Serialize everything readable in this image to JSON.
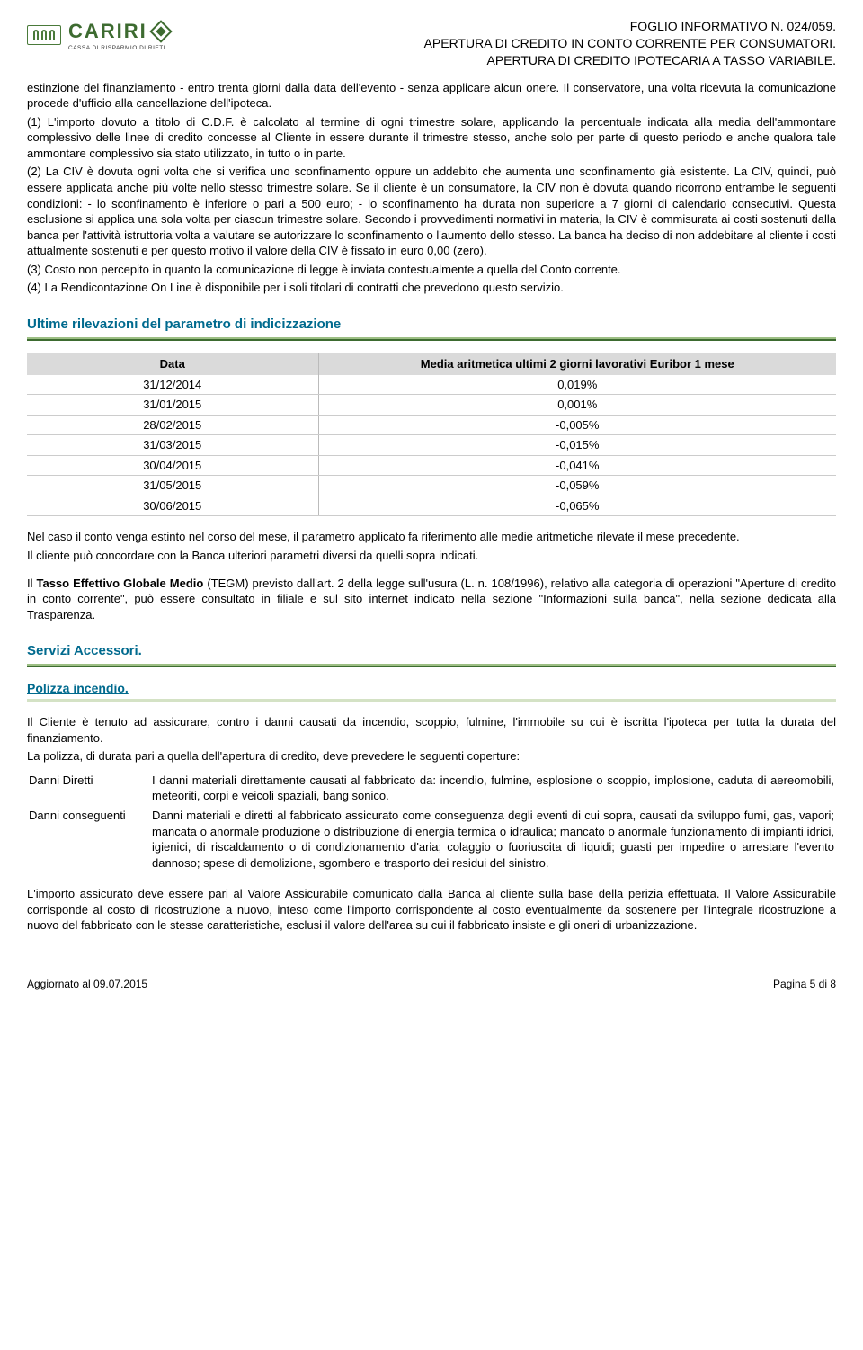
{
  "logo": {
    "name": "CARIRI",
    "sub": "CASSA DI RISPARMIO DI RIETI"
  },
  "header": {
    "line1": "FOGLIO INFORMATIVO N. 024/059.",
    "line2": "APERTURA DI CREDITO IN CONTO CORRENTE PER CONSUMATORI.",
    "line3": "APERTURA DI CREDITO IPOTECARIA A TASSO VARIABILE."
  },
  "p_intro": "estinzione del finanziamento - entro trenta giorni dalla data dell'evento - senza applicare alcun onere. Il conservatore, una volta ricevuta la comunicazione procede d'ufficio alla cancellazione dell'ipoteca.",
  "p_note1": "(1) L'importo dovuto a titolo di C.D.F. è calcolato al termine di ogni trimestre solare, applicando la percentuale indicata alla media dell'ammontare complessivo delle linee di credito concesse al Cliente in essere durante il trimestre stesso, anche solo per parte di questo periodo e anche qualora tale ammontare complessivo sia stato utilizzato, in tutto o in parte.",
  "p_note2": "(2) La CIV è dovuta ogni volta che si verifica uno sconfinamento oppure un addebito che aumenta uno sconfinamento già esistente. La CIV, quindi, può essere applicata anche più volte nello stesso trimestre solare. Se il cliente è un consumatore, la CIV non è dovuta quando ricorrono entrambe le seguenti condizioni: - lo sconfinamento è inferiore o pari a 500 euro; - lo sconfinamento ha durata non superiore a 7 giorni di calendario consecutivi. Questa esclusione si applica una sola volta per ciascun trimestre solare. Secondo i provvedimenti normativi in materia, la CIV è commisurata ai costi sostenuti dalla banca per l'attività istruttoria volta a valutare se autorizzare lo sconfinamento o l'aumento dello stesso. La banca ha deciso di non addebitare al cliente i costi attualmente sostenuti e per questo motivo il valore della CIV è fissato in euro 0,00 (zero).",
  "p_note3": "(3) Costo non percepito in quanto la comunicazione di legge è inviata contestualmente a quella del Conto corrente.",
  "p_note4": "(4) La Rendicontazione On Line è disponibile per i soli titolari di contratti che prevedono questo servizio.",
  "sec_rates_title": "Ultime rilevazioni del parametro di indicizzazione",
  "rates_table": {
    "col1": "Data",
    "col2": "Media aritmetica ultimi 2 giorni lavorativi Euribor 1 mese",
    "rows": [
      [
        "31/12/2014",
        "0,019%"
      ],
      [
        "31/01/2015",
        "0,001%"
      ],
      [
        "28/02/2015",
        "-0,005%"
      ],
      [
        "31/03/2015",
        "-0,015%"
      ],
      [
        "30/04/2015",
        "-0,041%"
      ],
      [
        "31/05/2015",
        "-0,059%"
      ],
      [
        "30/06/2015",
        "-0,065%"
      ]
    ]
  },
  "p_after1": "Nel caso il conto venga estinto nel corso del mese, il parametro applicato fa riferimento alle medie aritmetiche rilevate il mese precedente.",
  "p_after2": "Il cliente può concordare con la Banca ulteriori parametri diversi da quelli sopra indicati.",
  "p_tegm_pre": "Il ",
  "p_tegm_bold": "Tasso Effettivo Globale Medio",
  "p_tegm_rest": " (TEGM) previsto dall'art. 2 della legge sull'usura (L. n. 108/1996), relativo alla categoria di operazioni \"Aperture di credito in conto corrente\", può essere consultato in filiale e sul sito internet indicato nella sezione \"Informazioni sulla banca\", nella sezione dedicata alla Trasparenza.",
  "sec_servizi_title": "Servizi Accessori.",
  "sub_polizza_title": "Polizza incendio.",
  "p_polizza1": "Il Cliente è tenuto ad assicurare, contro i danni causati da incendio, scoppio, fulmine, l'immobile su cui è iscritta l'ipoteca per tutta la durata del finanziamento.",
  "p_polizza2": "La polizza, di durata pari a quella dell'apertura di credito, deve prevedere le seguenti coperture:",
  "defs": [
    {
      "term": "Danni Diretti",
      "desc": "I danni materiali direttamente causati al fabbricato da: incendio, fulmine, esplosione o scoppio, implosione, caduta di aereomobili, meteoriti, corpi e veicoli spaziali, bang sonico."
    },
    {
      "term": "Danni conseguenti",
      "desc": "Danni materiali e diretti al fabbricato assicurato come conseguenza degli eventi di cui sopra, causati da sviluppo fumi, gas, vapori; mancata o anormale produzione o distribuzione di energia termica o idraulica; mancato o anormale funzionamento di impianti idrici, igienici, di riscaldamento o di condizionamento d'aria; colaggio o fuoriuscita di liquidi; guasti per impedire o arrestare l'evento dannoso; spese di demolizione, sgombero e trasporto dei residui del sinistro."
    }
  ],
  "p_final": "L'importo assicurato deve essere pari al Valore Assicurabile comunicato dalla Banca al cliente sulla base della perizia effettuata. Il Valore Assicurabile corrisponde al costo di ricostruzione a nuovo, inteso come l'importo corrispondente al costo eventualmente da sostenere per l'integrale ricostruzione a nuovo del fabbricato con le stesse caratteristiche, esclusi il valore dell'area su cui il fabbricato insiste e gli oneri di urbanizzazione.",
  "footer": {
    "left": "Aggiornato al 09.07.2015",
    "right": "Pagina 5 di 8"
  }
}
